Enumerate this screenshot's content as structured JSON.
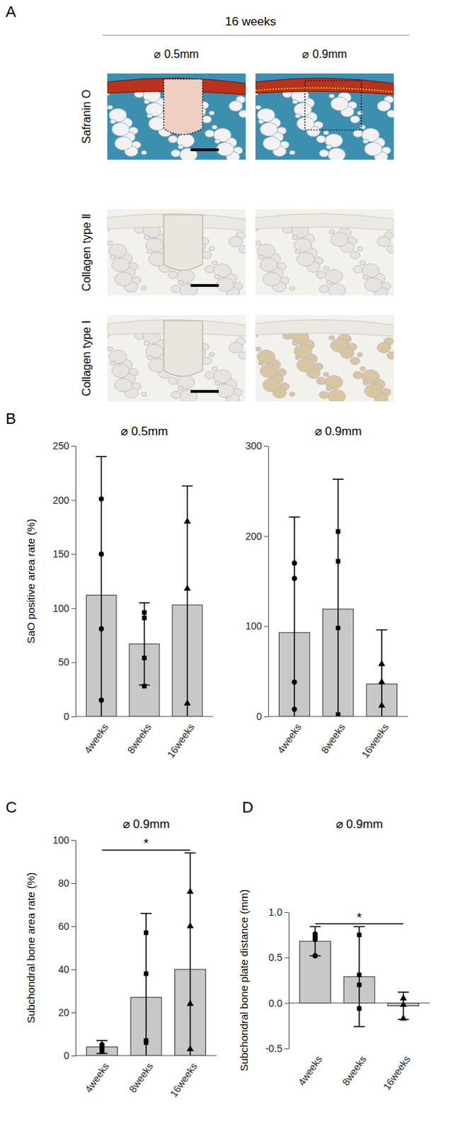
{
  "figure": {
    "panel_labels": [
      "A",
      "B",
      "C",
      "D"
    ],
    "panel_a": {
      "title": "16 weeks",
      "columns": [
        "⌀ 0.5mm",
        "⌀ 0.9mm"
      ],
      "rows": [
        "Safranin O",
        "Collagen type Ⅱ",
        "Collagen type Ⅰ"
      ]
    }
  },
  "chart_data": [
    {
      "type": "bar",
      "title": "⌀ 0.5mm",
      "y_label": "SaO positive area rate (%)",
      "categories": [
        "4weeks",
        "8weeks",
        "16weeks"
      ],
      "values": [
        112,
        67,
        103
      ],
      "errors": [
        128,
        38,
        110
      ],
      "points": [
        [
          201,
          150,
          81,
          15
        ],
        [
          91,
          96,
          54,
          28
        ],
        [
          180,
          118,
          12
        ]
      ],
      "color": "#c8c8c8",
      "ylim": [
        0,
        250
      ],
      "yticks": [
        0,
        50,
        100,
        150,
        200,
        250
      ]
    },
    {
      "type": "bar",
      "title": "⌀ 0.9mm",
      "categories": [
        "4weeks",
        "8weeks",
        "16weeks"
      ],
      "values": [
        93,
        119,
        36
      ],
      "errors": [
        128,
        144,
        60
      ],
      "points": [
        [
          170,
          153,
          38,
          8
        ],
        [
          205,
          172,
          98,
          2
        ],
        [
          58,
          38,
          12
        ]
      ],
      "color": "#c8c8c8",
      "ylim": [
        0,
        300
      ],
      "yticks": [
        0,
        100,
        200,
        300
      ]
    },
    {
      "type": "bar",
      "title": "⌀ 0.9mm",
      "y_label": "Subchondral bone area rate (%)",
      "categories": [
        "4weeks",
        "8weeks",
        "16weeks"
      ],
      "values": [
        4,
        27,
        40
      ],
      "errors": [
        3,
        39,
        54
      ],
      "points": [
        [
          5,
          4,
          2,
          3
        ],
        [
          57,
          38,
          7,
          6
        ],
        [
          76,
          60,
          24,
          3
        ]
      ],
      "significance": [
        {
          "from": "4weeks",
          "to": "16weeks",
          "label": "*"
        }
      ],
      "color": "#c8c8c8",
      "ylim": [
        0,
        100
      ],
      "yticks": [
        0,
        20,
        40,
        60,
        80,
        100
      ]
    },
    {
      "type": "bar",
      "title": "⌀ 0.9mm",
      "y_label": "Subchondral bone plate distance (mm)",
      "categories": [
        "4weeks",
        "8weeks",
        "16weeks"
      ],
      "values": [
        0.68,
        0.29,
        -0.03
      ],
      "errors": [
        0.16,
        0.55,
        0.15
      ],
      "points": [
        [
          0.76,
          0.73,
          0.7,
          0.52
        ],
        [
          0.75,
          0.31,
          0.2,
          -0.06
        ],
        [
          0.05,
          -0.02,
          -0.17
        ]
      ],
      "significance": [
        {
          "from": "4weeks",
          "to": "16weeks",
          "label": "*"
        }
      ],
      "color": "#c8c8c8",
      "ylim": [
        -0.5,
        1.0
      ],
      "yticks": [
        -0.5,
        {
          "value": 0,
          "label": "0.0"
        },
        0.5,
        {
          "value": 1,
          "label": "1.0"
        }
      ]
    }
  ]
}
